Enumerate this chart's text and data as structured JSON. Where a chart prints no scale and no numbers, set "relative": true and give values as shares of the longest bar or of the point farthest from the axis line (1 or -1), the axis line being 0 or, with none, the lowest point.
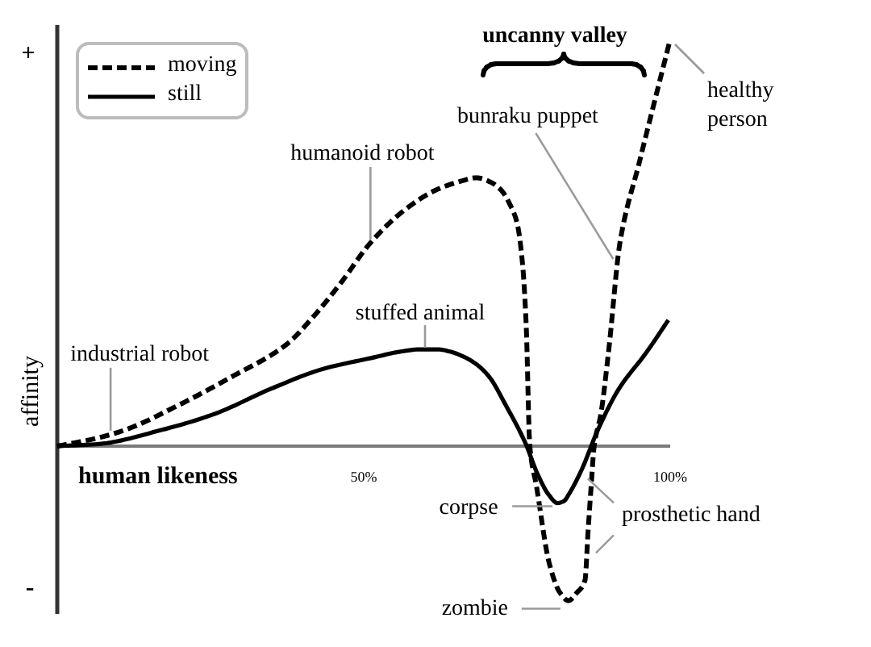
{
  "chart_data": {
    "type": "line",
    "relative": true,
    "xlabel": "human likeness",
    "ylabel": "affinity",
    "xlim": [
      0,
      100
    ],
    "xticks": [
      {
        "value": 50,
        "label": "50%"
      },
      {
        "value": 100,
        "label": "100%"
      }
    ],
    "legend": "top left",
    "series": [
      {
        "name": "moving",
        "color": "#000000",
        "line_style": "dashed",
        "x": [
          0,
          6.6,
          11.1,
          19.7,
          28.4,
          37.4,
          41.3,
          46.2,
          51.1,
          56.6,
          61.8,
          65.5,
          68.4,
          70.6,
          72.4,
          74.0,
          75.0,
          75.9,
          76.5,
          77.1,
          78.2,
          80.3,
          82.0,
          83.4,
          84.8,
          86.1,
          86.6,
          87.1,
          87.6,
          88.7,
          90.0,
          91.8,
          95.0,
          100
        ],
        "values": [
          0,
          0.02,
          0.04,
          0.1,
          0.17,
          0.25,
          0.31,
          0.4,
          0.5,
          0.58,
          0.63,
          0.65,
          0.66,
          0.65,
          0.63,
          0.59,
          0.55,
          0.45,
          0.3,
          0,
          -0.1,
          -0.29,
          -0.36,
          -0.38,
          -0.36,
          -0.33,
          -0.21,
          -0.1,
          0,
          0.08,
          0.24,
          0.5,
          0.7,
          1
        ]
      },
      {
        "name": "still",
        "color": "#000000",
        "line_style": "solid",
        "x": [
          0,
          6.6,
          17.1,
          25.8,
          34.7,
          43.4,
          51.6,
          55.8,
          59.2,
          62.0,
          64.2,
          66.3,
          68.5,
          70.5,
          73.2,
          76.3,
          78.4,
          80.2,
          81.6,
          82.7,
          83.4,
          85.5,
          88.2,
          91.6,
          96.1,
          99.7
        ],
        "values": [
          0,
          0.005,
          0.04,
          0.08,
          0.14,
          0.19,
          0.218,
          0.232,
          0.238,
          0.238,
          0.232,
          0.22,
          0.2,
          0.17,
          0.1,
          0.01,
          -0.07,
          -0.12,
          -0.14,
          -0.135,
          -0.12,
          -0.06,
          0.04,
          0.14,
          0.23,
          0.31
        ]
      }
    ],
    "annotations": [
      {
        "text": "industrial robot",
        "x": 8.7,
        "y": 0.03
      },
      {
        "text": "humanoid robot",
        "x": 51.1,
        "y": 0.5
      },
      {
        "text": "stuffed animal",
        "x": 60,
        "y": 0.23
      },
      {
        "text": "bunraku puppet",
        "x": 91.5,
        "y": 0.46
      },
      {
        "text": "healthy\nperson",
        "x": 100,
        "y": 1
      },
      {
        "text": "corpse",
        "x": 81.6,
        "y": -0.14
      },
      {
        "text": "prosthetic hand",
        "x": 87.1,
        "y": -0.1
      },
      {
        "text": "zombie",
        "x": 83.4,
        "y": -0.38
      },
      "uncanny valley",
      "+",
      "-"
    ]
  }
}
